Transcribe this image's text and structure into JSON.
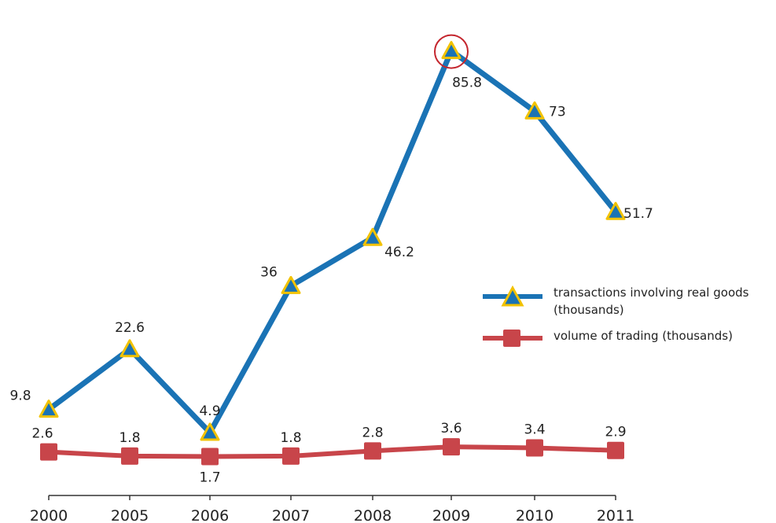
{
  "chart_data": {
    "type": "line",
    "categories": [
      "2000",
      "2005",
      "2006",
      "2007",
      "2008",
      "2009",
      "2010",
      "2011"
    ],
    "series": [
      {
        "name": "transactions involving real goods (thousands)",
        "values": [
          9.8,
          22.6,
          4.9,
          36,
          46.2,
          85.8,
          73,
          51.7
        ],
        "labels": [
          "9.8",
          "22.6",
          "4.9",
          "36",
          "46.2",
          "85.8",
          "73",
          "51.7"
        ],
        "color": "#1a73b5",
        "marker": "triangle",
        "marker_color": "#1a73b5",
        "marker_outline": "#f2c200"
      },
      {
        "name": "volume of trading (thousands)",
        "values": [
          2.6,
          1.8,
          1.7,
          1.8,
          2.8,
          3.6,
          3.4,
          2.9
        ],
        "labels": [
          "2.6",
          "1.8",
          "1.7",
          "1.8",
          "2.8",
          "3.6",
          "3.4",
          "2.9"
        ],
        "color": "#c8454a",
        "marker": "square",
        "marker_color": "#c8454a"
      }
    ],
    "highlight": {
      "series": 0,
      "category": "2009",
      "shape": "circle",
      "color": "#c4262e"
    },
    "legend": {
      "position": "right",
      "entries": [
        {
          "label": "transactions involving real goods",
          "label2": "(thousands)"
        },
        {
          "label": "volume of trading (thousands)"
        }
      ]
    },
    "grid": false,
    "y_axis_visible": false
  }
}
